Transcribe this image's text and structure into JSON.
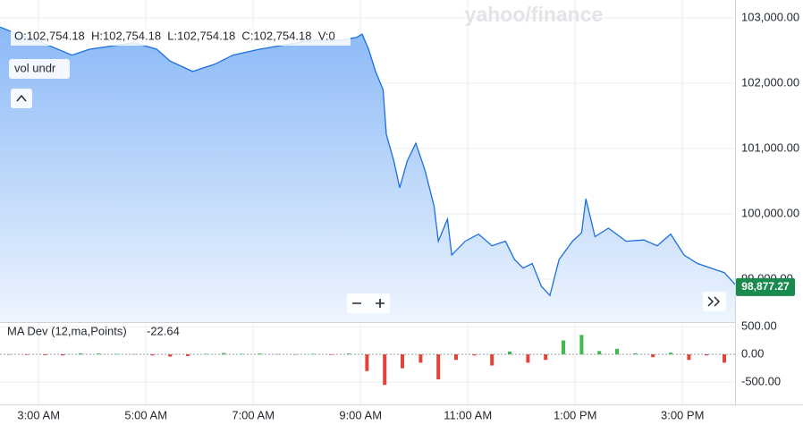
{
  "chart_data": [
    {
      "type": "line",
      "watermark": "yahoo/finance",
      "ohlc_label": "O:102,754.18  H:102,754.18  L:102,754.18  C:102,754.18  V:0",
      "study_label": "vol undr",
      "last_price": 98877.27,
      "last_price_label": "98,877.27",
      "xlim": [
        2.28,
        15.98
      ],
      "ylim": [
        98342,
        103274
      ],
      "yticks": [
        {
          "value": 99000,
          "label": "99,000.00"
        },
        {
          "value": 100000,
          "label": "100,000.00"
        },
        {
          "value": 101000,
          "label": "101,000.00"
        },
        {
          "value": 102000,
          "label": "102,000.00"
        },
        {
          "value": 103000,
          "label": "103,000.00"
        }
      ],
      "grid": true,
      "color": "#1a6fe0",
      "badge_color": "#1b8a4e",
      "x": [
        2.28,
        2.61,
        2.95,
        3.62,
        3.95,
        4.28,
        4.78,
        5.2,
        5.45,
        5.87,
        6.28,
        6.62,
        7.12,
        7.62,
        8.12,
        8.62,
        8.92,
        9.03,
        9.15,
        9.28,
        9.42,
        9.48,
        9.62,
        9.73,
        9.87,
        10.03,
        10.2,
        10.37,
        10.45,
        10.62,
        10.7,
        10.95,
        11.2,
        11.45,
        11.7,
        11.87,
        12.03,
        12.2,
        12.37,
        12.53,
        12.7,
        12.95,
        13.12,
        13.2,
        13.37,
        13.62,
        13.95,
        14.28,
        14.53,
        14.78,
        15.03,
        15.28,
        15.53,
        15.78,
        15.98
      ],
      "values": [
        102860,
        102750,
        102660,
        102430,
        102520,
        102560,
        102620,
        102520,
        102340,
        102180,
        102290,
        102430,
        102520,
        102590,
        102660,
        102660,
        102700,
        102750,
        102520,
        102180,
        101900,
        101220,
        100810,
        100400,
        100810,
        101080,
        100670,
        100120,
        99580,
        99920,
        99370,
        99580,
        99690,
        99510,
        99580,
        99300,
        99170,
        99240,
        98890,
        98750,
        99300,
        99580,
        99710,
        100230,
        99650,
        99780,
        99580,
        99600,
        99510,
        99690,
        99370,
        99240,
        99170,
        99100,
        98920
      ]
    },
    {
      "type": "bar",
      "title": "MA Dev (12,ma,Points)",
      "last_value": -22.64,
      "xlim": [
        2.28,
        15.98
      ],
      "ylim": [
        -900,
        580
      ],
      "xticks": [
        {
          "value": 3,
          "label": "3:00 AM"
        },
        {
          "value": 5,
          "label": "5:00 AM"
        },
        {
          "value": 7,
          "label": "7:00 AM"
        },
        {
          "value": 9,
          "label": "9:00 AM"
        },
        {
          "value": 11,
          "label": "11:00 AM"
        },
        {
          "value": 13,
          "label": "1:00 PM"
        },
        {
          "value": 15,
          "label": "3:00 PM"
        }
      ],
      "yticks": [
        {
          "value": -500,
          "label": "-500.00"
        },
        {
          "value": 0,
          "label": "0.00"
        },
        {
          "value": 500,
          "label": "500.00"
        }
      ],
      "colors": {
        "up": "#3fb950",
        "down": "#e0443c"
      },
      "x": [
        2.45,
        2.78,
        3.12,
        3.45,
        3.78,
        4.12,
        4.45,
        4.78,
        5.12,
        5.45,
        5.78,
        6.12,
        6.45,
        6.78,
        7.12,
        7.45,
        7.78,
        8.12,
        8.45,
        8.78,
        9.12,
        9.45,
        9.78,
        10.12,
        10.45,
        10.78,
        11.12,
        11.45,
        11.78,
        12.12,
        12.45,
        12.78,
        13.12,
        13.45,
        13.78,
        14.12,
        14.45,
        14.78,
        15.12,
        15.45,
        15.78
      ],
      "values": [
        -5,
        -10,
        -15,
        -20,
        20,
        15,
        10,
        5,
        -20,
        -40,
        -30,
        10,
        25,
        10,
        15,
        5,
        -5,
        10,
        -10,
        15,
        -300,
        -550,
        -250,
        -150,
        -450,
        -100,
        -20,
        -200,
        50,
        -150,
        -100,
        250,
        350,
        60,
        100,
        20,
        -50,
        30,
        -100,
        -20,
        -150
      ]
    }
  ]
}
